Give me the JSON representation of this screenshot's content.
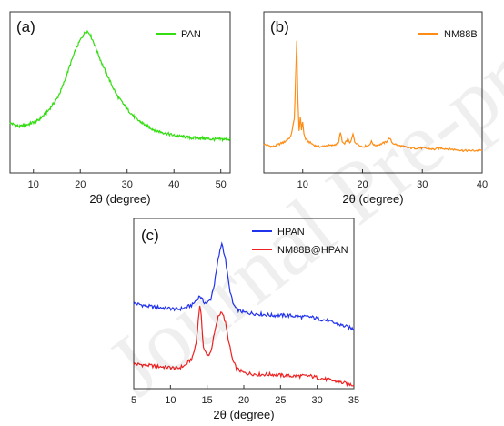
{
  "watermark": "Journal Pre-proof",
  "charts": {
    "a": {
      "label": "(a)"
    },
    "b": {
      "label": "(b)"
    },
    "c": {
      "label": "(c)"
    }
  },
  "chart_data": [
    {
      "id": "a",
      "type": "line",
      "panel_label": "(a)",
      "xlabel": "2θ (degree)",
      "ylabel": "",
      "xlim": [
        5,
        52
      ],
      "ylim": [
        0,
        1
      ],
      "xticks": [
        10,
        20,
        30,
        40,
        50
      ],
      "yticks": [],
      "grid": false,
      "legend": "top-right",
      "series": [
        {
          "name": "PAN",
          "color": "#33dd11",
          "x": [
            5,
            7,
            9,
            11,
            13,
            15,
            16,
            17,
            18,
            19,
            20,
            21,
            21.5,
            22,
            23,
            24,
            25,
            26,
            27,
            28,
            30,
            32,
            34,
            36,
            38,
            40,
            42,
            44,
            46,
            48,
            50,
            52
          ],
          "y": [
            0.27,
            0.24,
            0.26,
            0.29,
            0.36,
            0.46,
            0.54,
            0.64,
            0.75,
            0.85,
            0.93,
            0.99,
            1.0,
            0.98,
            0.9,
            0.8,
            0.71,
            0.63,
            0.55,
            0.48,
            0.38,
            0.3,
            0.25,
            0.21,
            0.19,
            0.17,
            0.16,
            0.15,
            0.15,
            0.14,
            0.14,
            0.14
          ]
        }
      ]
    },
    {
      "id": "b",
      "type": "line",
      "panel_label": "(b)",
      "xlabel": "2θ (degree)",
      "ylabel": "",
      "xlim": [
        3.5,
        40
      ],
      "ylim": [
        0,
        1
      ],
      "xticks": [
        10,
        20,
        30,
        40
      ],
      "yticks": [],
      "grid": false,
      "legend": "top-right",
      "series": [
        {
          "name": "NM88B",
          "color": "#ff8c14",
          "x": [
            3.5,
            5,
            6,
            7,
            8,
            8.6,
            8.8,
            9.0,
            9.2,
            9.4,
            9.6,
            9.8,
            10.0,
            10.2,
            10.5,
            11,
            12,
            13,
            14,
            15,
            16,
            16.3,
            16.6,
            17,
            17.5,
            18,
            18.4,
            18.7,
            19.2,
            20,
            21,
            21.5,
            22,
            23,
            24,
            24.5,
            25,
            26,
            27,
            28,
            30,
            32,
            33,
            35,
            37,
            40
          ],
          "y": [
            0.1,
            0.08,
            0.1,
            0.12,
            0.16,
            0.3,
            0.6,
            0.92,
            0.45,
            0.2,
            0.32,
            0.22,
            0.28,
            0.18,
            0.14,
            0.12,
            0.09,
            0.08,
            0.09,
            0.09,
            0.11,
            0.2,
            0.12,
            0.1,
            0.14,
            0.11,
            0.18,
            0.12,
            0.1,
            0.08,
            0.09,
            0.12,
            0.09,
            0.1,
            0.12,
            0.15,
            0.11,
            0.09,
            0.08,
            0.07,
            0.07,
            0.06,
            0.07,
            0.06,
            0.05,
            0.05
          ]
        }
      ]
    },
    {
      "id": "c",
      "type": "line",
      "panel_label": "(c)",
      "xlabel": "2θ (degree)",
      "ylabel": "",
      "xlim": [
        5,
        35
      ],
      "ylim": [
        0,
        1
      ],
      "xticks": [
        5,
        10,
        15,
        20,
        25,
        30,
        35
      ],
      "yticks": [],
      "grid": false,
      "legend": "top-right",
      "series": [
        {
          "name": "HPAN",
          "color": "#2233ee",
          "x": [
            5,
            7,
            9,
            11,
            12,
            13,
            13.5,
            14,
            14.5,
            15,
            15.5,
            16,
            16.5,
            17,
            17.5,
            18,
            18.5,
            19,
            20,
            22,
            24,
            26,
            28,
            29,
            30,
            31,
            33,
            35
          ],
          "y": [
            0.53,
            0.51,
            0.5,
            0.49,
            0.5,
            0.52,
            0.55,
            0.58,
            0.54,
            0.53,
            0.56,
            0.66,
            0.82,
            0.93,
            0.82,
            0.64,
            0.53,
            0.49,
            0.47,
            0.46,
            0.45,
            0.45,
            0.44,
            0.44,
            0.43,
            0.42,
            0.39,
            0.36
          ]
        },
        {
          "name": "NM88B@HPAN",
          "color": "#ee2222",
          "x": [
            5,
            7,
            9,
            11,
            12,
            13,
            13.5,
            13.8,
            14.0,
            14.2,
            14.5,
            15,
            15.5,
            16,
            16.5,
            17,
            17.5,
            18,
            18.5,
            19,
            20,
            22,
            24,
            26,
            28,
            29,
            30,
            31,
            33,
            35
          ],
          "y": [
            0.13,
            0.12,
            0.11,
            0.1,
            0.12,
            0.17,
            0.27,
            0.42,
            0.52,
            0.44,
            0.24,
            0.18,
            0.21,
            0.33,
            0.44,
            0.48,
            0.4,
            0.26,
            0.15,
            0.1,
            0.07,
            0.06,
            0.06,
            0.05,
            0.05,
            0.05,
            0.04,
            0.03,
            0.01,
            -0.01
          ]
        }
      ]
    }
  ]
}
